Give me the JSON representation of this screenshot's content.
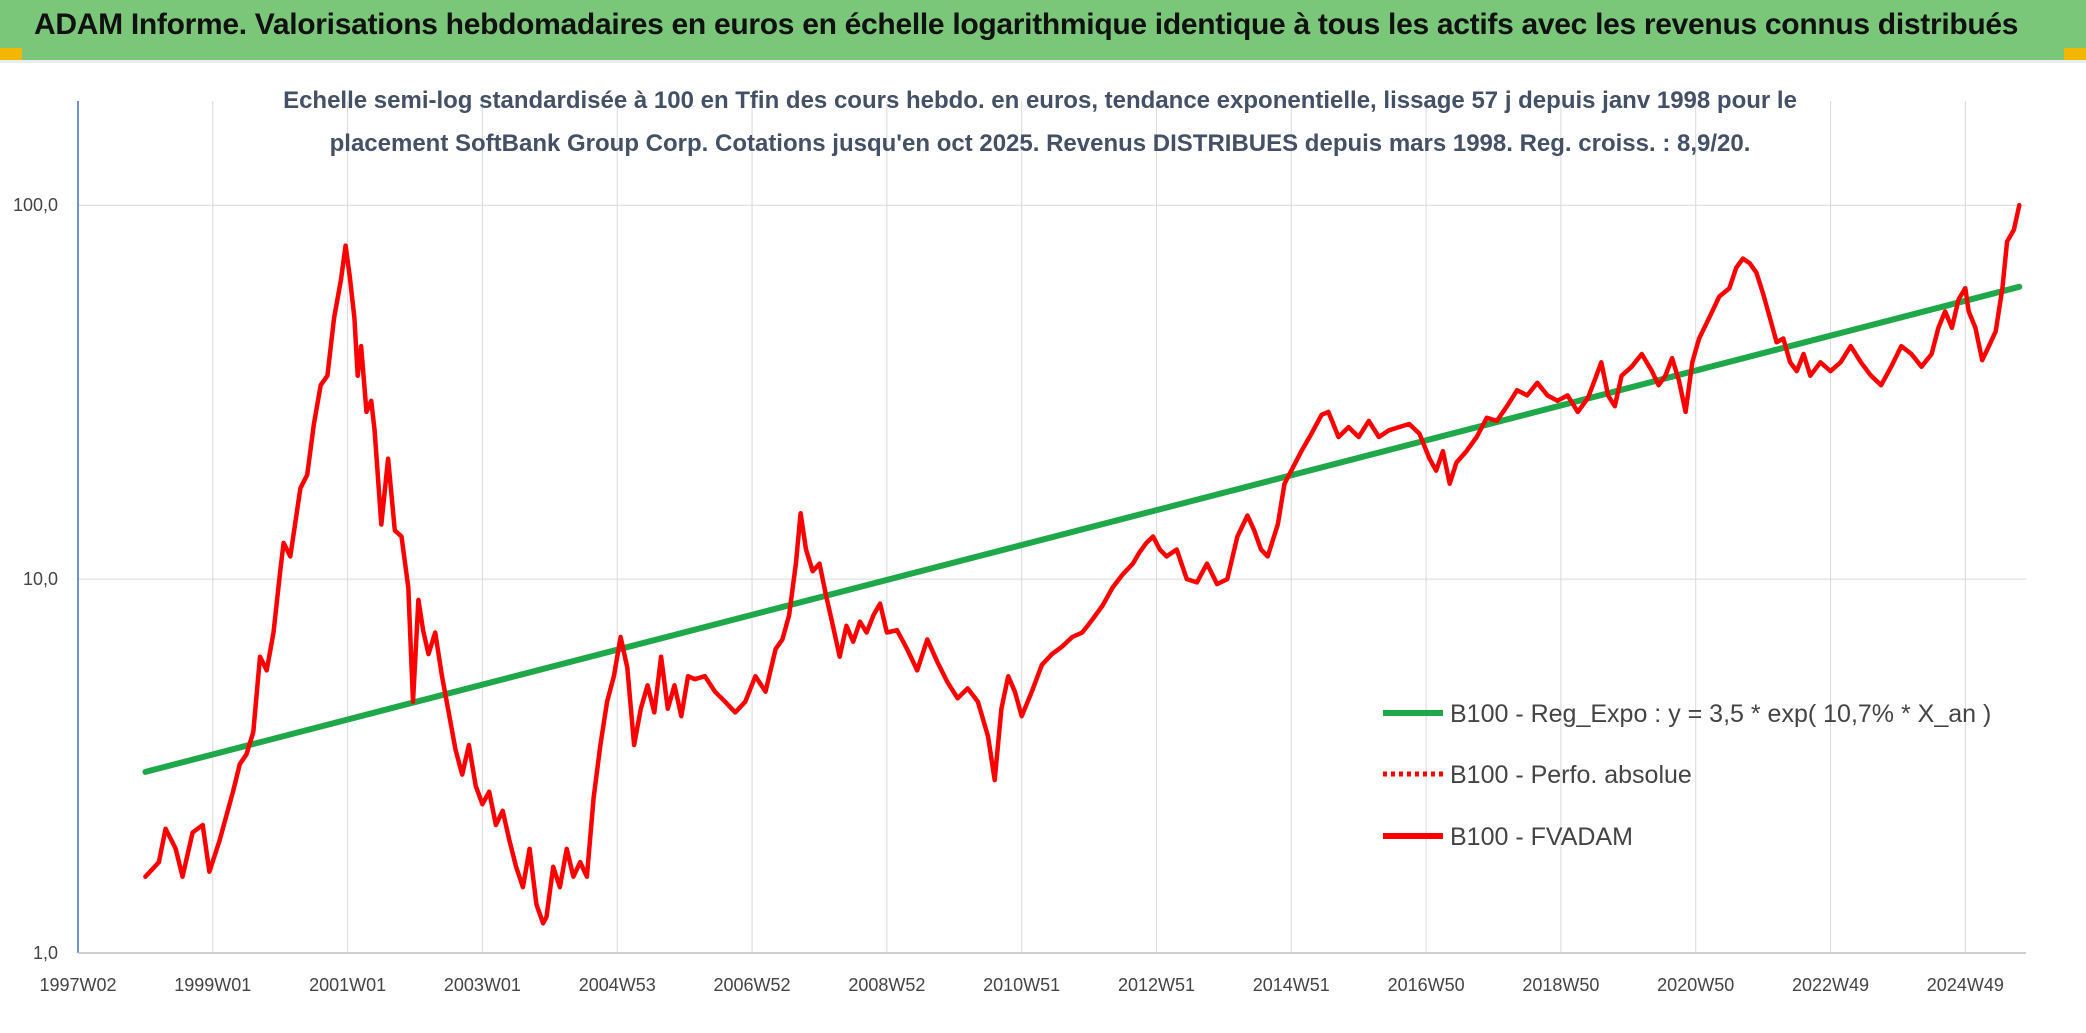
{
  "header": {
    "title": "ADAM Informe. Valorisations hebdomadaires en euros en échelle logarithmique identique à tous les actifs avec les revenus connus distribués"
  },
  "colors": {
    "header_bg": "#7ac77a",
    "trend": "#1fa84a",
    "series": "#ff0000",
    "corner": "#f2b705"
  },
  "chart_data": {
    "type": "line",
    "title_lines": [
      "Echelle semi-log standardisée à 100 en Tfin des cours hebdo. en euros, tendance exponentielle, lissage 57 j depuis janv 1998 pour le",
      "placement SoftBank Group Corp. Cotations jusqu'en oct 2025. Revenus DISTRIBUES depuis mars 1998. Reg. croiss. : 8,9/20."
    ],
    "y_scale": "log",
    "ylim": [
      1,
      190
    ],
    "y_ticks": [
      {
        "value": 1,
        "label": "1,0"
      },
      {
        "value": 10,
        "label": "10,0"
      },
      {
        "value": 100,
        "label": "100,0"
      }
    ],
    "xlim": [
      1997.0,
      2025.9
    ],
    "x_ticks": [
      {
        "value": 1997.0,
        "label": "1997W02"
      },
      {
        "value": 1999.0,
        "label": "1999W01"
      },
      {
        "value": 2001.0,
        "label": "2001W01"
      },
      {
        "value": 2003.0,
        "label": "2003W01"
      },
      {
        "value": 2005.0,
        "label": "2004W53"
      },
      {
        "value": 2007.0,
        "label": "2006W52"
      },
      {
        "value": 2009.0,
        "label": "2008W52"
      },
      {
        "value": 2011.0,
        "label": "2010W51"
      },
      {
        "value": 2013.0,
        "label": "2012W51"
      },
      {
        "value": 2015.0,
        "label": "2014W51"
      },
      {
        "value": 2017.0,
        "label": "2016W50"
      },
      {
        "value": 2019.0,
        "label": "2018W50"
      },
      {
        "value": 2021.0,
        "label": "2020W50"
      },
      {
        "value": 2023.0,
        "label": "2022W49"
      },
      {
        "value": 2025.0,
        "label": "2024W49"
      }
    ],
    "grid": true,
    "legend_position": "right",
    "series": [
      {
        "name": "B100 - Reg_Expo : y = 3,5 * exp( 10,7% *  X_an )",
        "color": "#1fa84a",
        "style": "solid",
        "points": [
          [
            1998.0,
            3.05
          ],
          [
            2025.8,
            60.5
          ]
        ]
      },
      {
        "name": "B100 - Perfo. absolue",
        "color": "#ff0000",
        "style": "dotted",
        "points": []
      },
      {
        "name": "B100 - FVADAM",
        "color": "#ff0000",
        "style": "solid",
        "points": [
          [
            1998.0,
            1.6
          ],
          [
            1998.2,
            1.75
          ],
          [
            1998.3,
            2.15
          ],
          [
            1998.45,
            1.9
          ],
          [
            1998.55,
            1.6
          ],
          [
            1998.7,
            2.1
          ],
          [
            1998.85,
            2.2
          ],
          [
            1998.95,
            1.65
          ],
          [
            1999.1,
            2.0
          ],
          [
            1999.3,
            2.7
          ],
          [
            1999.4,
            3.2
          ],
          [
            1999.5,
            3.4
          ],
          [
            1999.6,
            3.9
          ],
          [
            1999.7,
            6.2
          ],
          [
            1999.8,
            5.7
          ],
          [
            1999.9,
            7.2
          ],
          [
            2000.0,
            10.5
          ],
          [
            2000.05,
            12.5
          ],
          [
            2000.15,
            11.5
          ],
          [
            2000.3,
            17.5
          ],
          [
            2000.4,
            19.0
          ],
          [
            2000.5,
            26.0
          ],
          [
            2000.6,
            33.0
          ],
          [
            2000.7,
            35.0
          ],
          [
            2000.8,
            50.0
          ],
          [
            2000.9,
            63.0
          ],
          [
            2000.97,
            78.0
          ],
          [
            2001.03,
            65.0
          ],
          [
            2001.1,
            50.0
          ],
          [
            2001.15,
            35.0
          ],
          [
            2001.2,
            42.0
          ],
          [
            2001.28,
            28.0
          ],
          [
            2001.35,
            30.0
          ],
          [
            2001.4,
            25.0
          ],
          [
            2001.5,
            14.0
          ],
          [
            2001.6,
            21.0
          ],
          [
            2001.7,
            13.5
          ],
          [
            2001.8,
            13.0
          ],
          [
            2001.9,
            9.5
          ],
          [
            2001.97,
            4.7
          ],
          [
            2002.05,
            8.8
          ],
          [
            2002.12,
            7.3
          ],
          [
            2002.2,
            6.3
          ],
          [
            2002.3,
            7.2
          ],
          [
            2002.4,
            5.5
          ],
          [
            2002.5,
            4.4
          ],
          [
            2002.6,
            3.5
          ],
          [
            2002.7,
            3.0
          ],
          [
            2002.8,
            3.6
          ],
          [
            2002.9,
            2.8
          ],
          [
            2003.0,
            2.5
          ],
          [
            2003.1,
            2.7
          ],
          [
            2003.2,
            2.2
          ],
          [
            2003.3,
            2.4
          ],
          [
            2003.4,
            2.0
          ],
          [
            2003.5,
            1.7
          ],
          [
            2003.6,
            1.5
          ],
          [
            2003.7,
            1.9
          ],
          [
            2003.8,
            1.35
          ],
          [
            2003.9,
            1.2
          ],
          [
            2003.95,
            1.25
          ],
          [
            2004.05,
            1.7
          ],
          [
            2004.15,
            1.5
          ],
          [
            2004.25,
            1.9
          ],
          [
            2004.35,
            1.6
          ],
          [
            2004.45,
            1.75
          ],
          [
            2004.55,
            1.6
          ],
          [
            2004.65,
            2.6
          ],
          [
            2004.75,
            3.6
          ],
          [
            2004.85,
            4.7
          ],
          [
            2004.95,
            5.5
          ],
          [
            2005.05,
            7.0
          ],
          [
            2005.15,
            5.8
          ],
          [
            2005.25,
            3.6
          ],
          [
            2005.35,
            4.5
          ],
          [
            2005.45,
            5.2
          ],
          [
            2005.55,
            4.4
          ],
          [
            2005.65,
            6.2
          ],
          [
            2005.75,
            4.5
          ],
          [
            2005.85,
            5.2
          ],
          [
            2005.95,
            4.3
          ],
          [
            2006.05,
            5.5
          ],
          [
            2006.15,
            5.4
          ],
          [
            2006.3,
            5.5
          ],
          [
            2006.45,
            5.0
          ],
          [
            2006.6,
            4.7
          ],
          [
            2006.75,
            4.4
          ],
          [
            2006.9,
            4.7
          ],
          [
            2007.05,
            5.5
          ],
          [
            2007.2,
            5.0
          ],
          [
            2007.35,
            6.5
          ],
          [
            2007.45,
            6.9
          ],
          [
            2007.55,
            8.0
          ],
          [
            2007.65,
            11.0
          ],
          [
            2007.72,
            15.0
          ],
          [
            2007.8,
            12.0
          ],
          [
            2007.9,
            10.5
          ],
          [
            2008.0,
            11.0
          ],
          [
            2008.1,
            9.0
          ],
          [
            2008.2,
            7.5
          ],
          [
            2008.3,
            6.2
          ],
          [
            2008.4,
            7.5
          ],
          [
            2008.5,
            6.8
          ],
          [
            2008.6,
            7.7
          ],
          [
            2008.7,
            7.2
          ],
          [
            2008.8,
            8.0
          ],
          [
            2008.9,
            8.6
          ],
          [
            2009.0,
            7.2
          ],
          [
            2009.15,
            7.3
          ],
          [
            2009.3,
            6.5
          ],
          [
            2009.45,
            5.7
          ],
          [
            2009.6,
            6.9
          ],
          [
            2009.75,
            6.0
          ],
          [
            2009.9,
            5.3
          ],
          [
            2010.05,
            4.8
          ],
          [
            2010.2,
            5.1
          ],
          [
            2010.35,
            4.7
          ],
          [
            2010.5,
            3.8
          ],
          [
            2010.6,
            2.9
          ],
          [
            2010.7,
            4.5
          ],
          [
            2010.8,
            5.5
          ],
          [
            2010.9,
            5.0
          ],
          [
            2011.0,
            4.3
          ],
          [
            2011.15,
            5.0
          ],
          [
            2011.3,
            5.9
          ],
          [
            2011.45,
            6.3
          ],
          [
            2011.6,
            6.6
          ],
          [
            2011.75,
            7.0
          ],
          [
            2011.9,
            7.2
          ],
          [
            2012.05,
            7.8
          ],
          [
            2012.2,
            8.5
          ],
          [
            2012.35,
            9.5
          ],
          [
            2012.5,
            10.3
          ],
          [
            2012.65,
            11.0
          ],
          [
            2012.75,
            11.8
          ],
          [
            2012.85,
            12.5
          ],
          [
            2012.95,
            13.0
          ],
          [
            2013.05,
            12.0
          ],
          [
            2013.15,
            11.5
          ],
          [
            2013.3,
            12.0
          ],
          [
            2013.45,
            10.0
          ],
          [
            2013.6,
            9.8
          ],
          [
            2013.75,
            11.0
          ],
          [
            2013.9,
            9.7
          ],
          [
            2014.05,
            10.0
          ],
          [
            2014.2,
            13.0
          ],
          [
            2014.35,
            14.8
          ],
          [
            2014.45,
            13.5
          ],
          [
            2014.55,
            12.0
          ],
          [
            2014.65,
            11.5
          ],
          [
            2014.8,
            14.0
          ],
          [
            2014.9,
            18.0
          ],
          [
            2015.0,
            19.5
          ],
          [
            2015.15,
            22.0
          ],
          [
            2015.3,
            24.5
          ],
          [
            2015.45,
            27.5
          ],
          [
            2015.55,
            28.0
          ],
          [
            2015.7,
            24.0
          ],
          [
            2015.85,
            25.5
          ],
          [
            2016.0,
            24.0
          ],
          [
            2016.15,
            26.5
          ],
          [
            2016.3,
            24.0
          ],
          [
            2016.45,
            25.0
          ],
          [
            2016.6,
            25.5
          ],
          [
            2016.75,
            26.0
          ],
          [
            2016.9,
            24.5
          ],
          [
            2017.05,
            21.0
          ],
          [
            2017.15,
            19.5
          ],
          [
            2017.25,
            22.0
          ],
          [
            2017.35,
            18.0
          ],
          [
            2017.45,
            20.5
          ],
          [
            2017.6,
            22.0
          ],
          [
            2017.75,
            24.0
          ],
          [
            2017.9,
            27.0
          ],
          [
            2018.05,
            26.5
          ],
          [
            2018.2,
            29.0
          ],
          [
            2018.35,
            32.0
          ],
          [
            2018.5,
            31.0
          ],
          [
            2018.65,
            33.5
          ],
          [
            2018.8,
            31.0
          ],
          [
            2018.95,
            30.0
          ],
          [
            2019.1,
            31.0
          ],
          [
            2019.25,
            28.0
          ],
          [
            2019.4,
            30.5
          ],
          [
            2019.5,
            34.0
          ],
          [
            2019.6,
            38.0
          ],
          [
            2019.7,
            31.0
          ],
          [
            2019.8,
            29.0
          ],
          [
            2019.9,
            35.0
          ],
          [
            2020.05,
            37.0
          ],
          [
            2020.2,
            40.0
          ],
          [
            2020.35,
            36.0
          ],
          [
            2020.45,
            33.0
          ],
          [
            2020.55,
            35.0
          ],
          [
            2020.65,
            39.0
          ],
          [
            2020.75,
            34.0
          ],
          [
            2020.85,
            28.0
          ],
          [
            2020.95,
            38.0
          ],
          [
            2021.05,
            44.0
          ],
          [
            2021.2,
            50.0
          ],
          [
            2021.35,
            57.0
          ],
          [
            2021.5,
            60.0
          ],
          [
            2021.6,
            68.0
          ],
          [
            2021.7,
            72.0
          ],
          [
            2021.8,
            70.0
          ],
          [
            2021.9,
            66.0
          ],
          [
            2022.0,
            58.0
          ],
          [
            2022.1,
            50.0
          ],
          [
            2022.2,
            43.0
          ],
          [
            2022.3,
            44.0
          ],
          [
            2022.4,
            38.0
          ],
          [
            2022.5,
            36.0
          ],
          [
            2022.6,
            40.0
          ],
          [
            2022.7,
            35.0
          ],
          [
            2022.85,
            38.0
          ],
          [
            2023.0,
            36.0
          ],
          [
            2023.15,
            38.0
          ],
          [
            2023.3,
            42.0
          ],
          [
            2023.45,
            38.0
          ],
          [
            2023.6,
            35.0
          ],
          [
            2023.75,
            33.0
          ],
          [
            2023.9,
            37.0
          ],
          [
            2024.05,
            42.0
          ],
          [
            2024.2,
            40.0
          ],
          [
            2024.35,
            37.0
          ],
          [
            2024.5,
            40.0
          ],
          [
            2024.6,
            47.0
          ],
          [
            2024.7,
            52.0
          ],
          [
            2024.8,
            47.0
          ],
          [
            2024.9,
            56.0
          ],
          [
            2025.0,
            60.0
          ],
          [
            2025.05,
            52.0
          ],
          [
            2025.15,
            47.0
          ],
          [
            2025.25,
            38.5
          ],
          [
            2025.35,
            42.0
          ],
          [
            2025.45,
            46.0
          ],
          [
            2025.55,
            60.0
          ],
          [
            2025.62,
            80.0
          ],
          [
            2025.72,
            86.0
          ],
          [
            2025.8,
            100.0
          ]
        ]
      }
    ]
  }
}
